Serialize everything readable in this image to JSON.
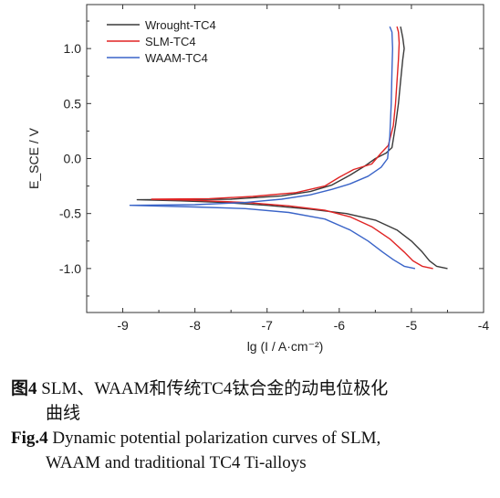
{
  "chart_data": {
    "type": "line",
    "xlabel": "lg (I / A·cm⁻²)",
    "ylabel": "E_SCE / V",
    "xlim": [
      -9.5,
      -4
    ],
    "ylim": [
      -1.4,
      1.4
    ],
    "x_ticks": [
      "-9",
      "-8",
      "-7",
      "-6",
      "-5",
      "-4"
    ],
    "x_tick_values": [
      -9,
      -8,
      -7,
      -6,
      -5,
      -4
    ],
    "y_ticks": [
      "1.0",
      "0.5",
      "0.0",
      "-0.5",
      "-1.0"
    ],
    "y_tick_values": [
      1.0,
      0.5,
      0.0,
      -0.5,
      -1.0
    ],
    "grid": false,
    "legend_position": "top-left",
    "series": [
      {
        "name": "Wrought-TC4",
        "color": "#3a3a3a",
        "points": [
          [
            -4.5,
            -1.0
          ],
          [
            -4.65,
            -0.98
          ],
          [
            -4.75,
            -0.93
          ],
          [
            -4.85,
            -0.85
          ],
          [
            -5.0,
            -0.75
          ],
          [
            -5.2,
            -0.65
          ],
          [
            -5.5,
            -0.56
          ],
          [
            -5.9,
            -0.5
          ],
          [
            -6.4,
            -0.46
          ],
          [
            -7.0,
            -0.425
          ],
          [
            -7.6,
            -0.4
          ],
          [
            -8.2,
            -0.385
          ],
          [
            -8.8,
            -0.375
          ],
          [
            -7.5,
            -0.37
          ],
          [
            -6.8,
            -0.34
          ],
          [
            -6.4,
            -0.3
          ],
          [
            -6.1,
            -0.24
          ],
          [
            -5.85,
            -0.15
          ],
          [
            -5.65,
            -0.07
          ],
          [
            -5.5,
            0.0
          ],
          [
            -5.35,
            0.05
          ],
          [
            -5.27,
            0.1
          ],
          [
            -5.22,
            0.3
          ],
          [
            -5.18,
            0.5
          ],
          [
            -5.15,
            0.7
          ],
          [
            -5.12,
            0.9
          ],
          [
            -5.1,
            1.0
          ],
          [
            -5.12,
            1.1
          ],
          [
            -5.15,
            1.2
          ]
        ]
      },
      {
        "name": "SLM-TC4",
        "color": "#e02424",
        "points": [
          [
            -4.7,
            -1.0
          ],
          [
            -4.85,
            -0.98
          ],
          [
            -4.98,
            -0.93
          ],
          [
            -5.1,
            -0.85
          ],
          [
            -5.3,
            -0.73
          ],
          [
            -5.55,
            -0.62
          ],
          [
            -5.85,
            -0.53
          ],
          [
            -6.2,
            -0.47
          ],
          [
            -6.7,
            -0.43
          ],
          [
            -7.3,
            -0.4
          ],
          [
            -8.0,
            -0.38
          ],
          [
            -8.6,
            -0.37
          ],
          [
            -7.8,
            -0.365
          ],
          [
            -7.2,
            -0.345
          ],
          [
            -6.6,
            -0.31
          ],
          [
            -6.2,
            -0.25
          ],
          [
            -6.0,
            -0.17
          ],
          [
            -5.8,
            -0.1
          ],
          [
            -5.55,
            -0.05
          ],
          [
            -5.42,
            0.05
          ],
          [
            -5.32,
            0.12
          ],
          [
            -5.25,
            0.3
          ],
          [
            -5.22,
            0.5
          ],
          [
            -5.2,
            0.7
          ],
          [
            -5.18,
            0.9
          ],
          [
            -5.17,
            1.05
          ],
          [
            -5.18,
            1.15
          ],
          [
            -5.2,
            1.2
          ]
        ]
      },
      {
        "name": "WAAM-TC4",
        "color": "#3a64c8",
        "points": [
          [
            -4.95,
            -1.0
          ],
          [
            -5.1,
            -0.98
          ],
          [
            -5.25,
            -0.92
          ],
          [
            -5.4,
            -0.85
          ],
          [
            -5.6,
            -0.75
          ],
          [
            -5.85,
            -0.65
          ],
          [
            -6.2,
            -0.55
          ],
          [
            -6.7,
            -0.49
          ],
          [
            -7.3,
            -0.455
          ],
          [
            -8.0,
            -0.44
          ],
          [
            -8.9,
            -0.425
          ],
          [
            -8.0,
            -0.42
          ],
          [
            -7.3,
            -0.4
          ],
          [
            -6.8,
            -0.37
          ],
          [
            -6.4,
            -0.33
          ],
          [
            -6.1,
            -0.28
          ],
          [
            -5.85,
            -0.23
          ],
          [
            -5.6,
            -0.16
          ],
          [
            -5.42,
            -0.08
          ],
          [
            -5.33,
            0.0
          ],
          [
            -5.3,
            0.2
          ],
          [
            -5.28,
            0.5
          ],
          [
            -5.27,
            0.8
          ],
          [
            -5.26,
            1.0
          ],
          [
            -5.27,
            1.15
          ],
          [
            -5.3,
            1.2
          ]
        ]
      }
    ]
  },
  "caption": {
    "cn_label": "图4",
    "cn_text_1": " SLM、WAAM和传统TC4钛合金的动电位极化",
    "cn_text_2": "曲线",
    "en_label": "Fig.4",
    "en_text_1": " Dynamic potential polarization curves of SLM,",
    "en_text_2": "WAAM and traditional TC4 Ti-alloys"
  }
}
